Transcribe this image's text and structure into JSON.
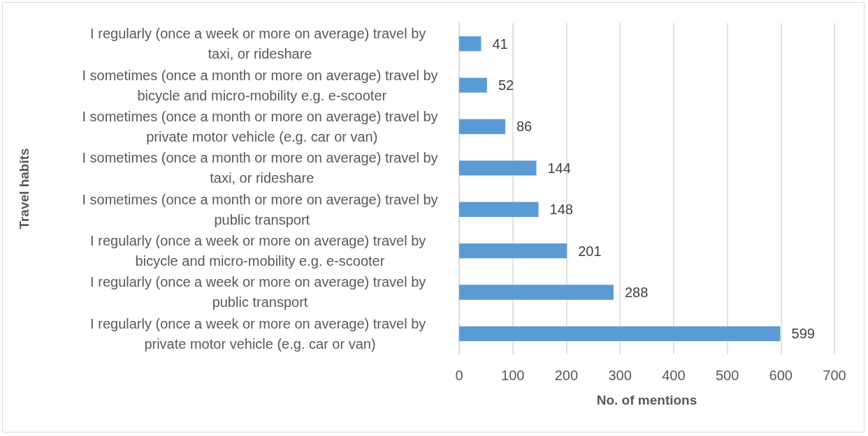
{
  "chart_data": {
    "type": "bar",
    "orientation": "horizontal",
    "xlabel": "No. of mentions",
    "ylabel": "Travel habits",
    "categories": [
      "I regularly (once a week or more on average) travel by taxi, or rideshare",
      "I sometimes (once a month or more on average) travel by bicycle and micro-mobility e.g. e-scooter",
      "I sometimes (once a month or more on average) travel by private motor vehicle (e.g. car or van)",
      "I sometimes (once a month or more on average) travel by taxi, or rideshare",
      "I sometimes (once a month or more on average) travel by public transport",
      "I regularly (once a week or more on average) travel by bicycle and micro-mobility e.g. e-scooter",
      "I regularly (once a week or more on average) travel by public transport",
      "I regularly (once a week or more on average) travel by private motor vehicle (e.g. car or van)"
    ],
    "values": [
      41,
      52,
      86,
      144,
      148,
      201,
      288,
      599
    ],
    "color": "#5b9bd5",
    "xlim": [
      0,
      700
    ],
    "xticks": [
      0,
      100,
      200,
      300,
      400,
      500,
      600,
      700
    ],
    "grid": "x",
    "data_labels": true
  }
}
